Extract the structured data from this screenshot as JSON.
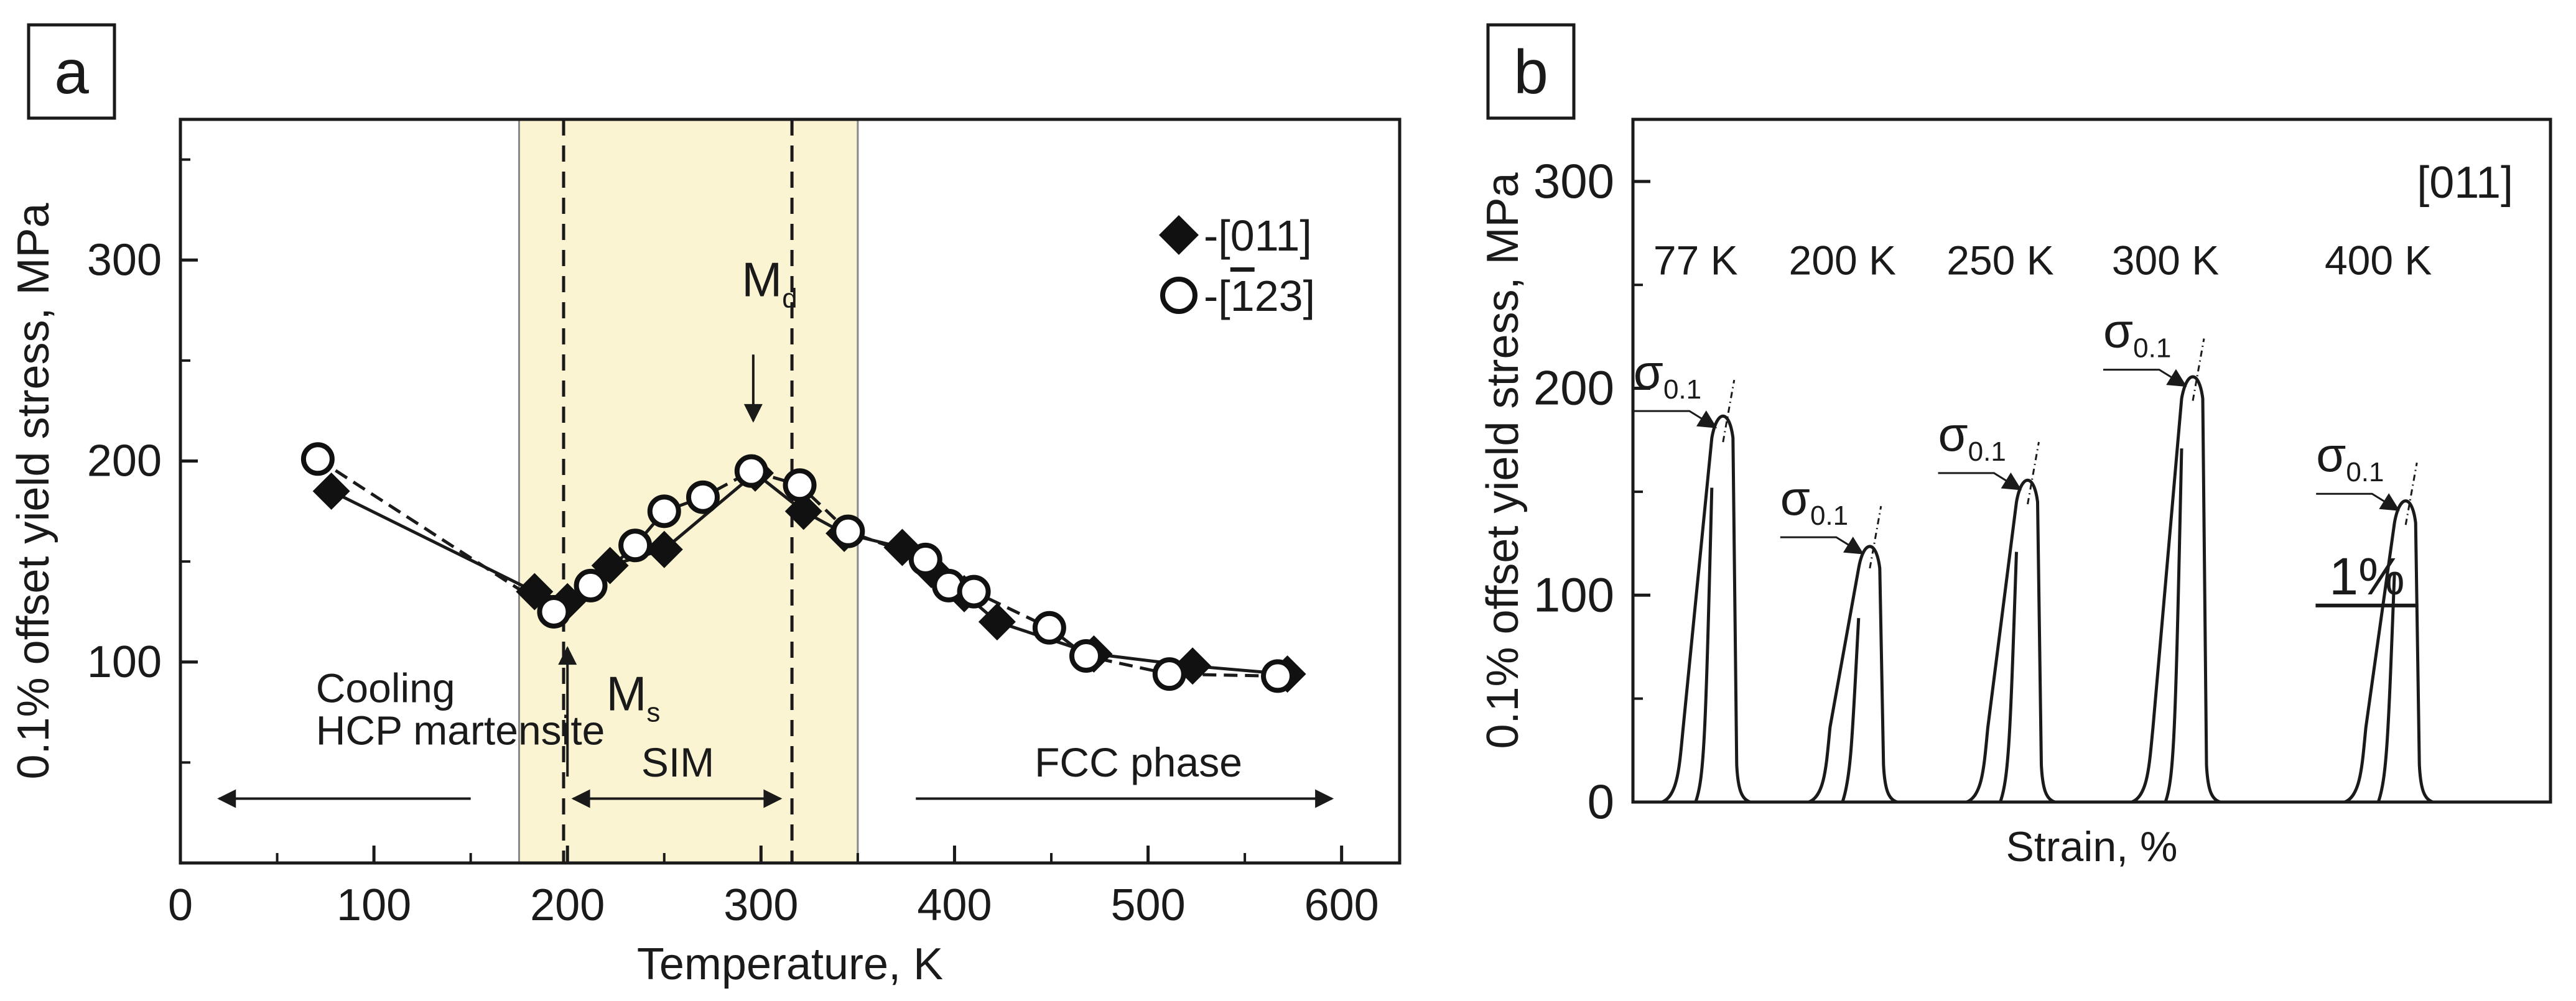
{
  "chart_data": [
    {
      "panel_label": "a",
      "type": "line",
      "xlabel": "Temperature, K",
      "ylabel": "0.1% offset yield stress, MPa",
      "xlim": [
        0,
        630
      ],
      "ylim": [
        0,
        370
      ],
      "xticks": [
        0,
        100,
        200,
        300,
        400,
        500,
        600
      ],
      "xtick_labels": [
        "0",
        "100",
        "200",
        "300",
        "400",
        "500",
        "600"
      ],
      "yticks": [
        100,
        200,
        300
      ],
      "ytick_labels": [
        "100",
        "200",
        "300"
      ],
      "shaded_region": {
        "x_range": [
          175,
          350
        ],
        "color": "#fbf4d2"
      },
      "vlines": [
        {
          "name": "ms-line",
          "x": 198
        },
        {
          "name": "md-line",
          "x": 316
        }
      ],
      "series": [
        {
          "name": "[011]",
          "legend_label": "-[011]",
          "marker": "diamond",
          "line": "solid",
          "x": [
            78,
            183,
            200,
            222,
            250,
            297,
            322,
            343,
            373,
            388,
            405,
            422,
            472,
            523,
            572
          ],
          "y": [
            185,
            135,
            130,
            148,
            156,
            194,
            175,
            164,
            157,
            146,
            134,
            120,
            104,
            98,
            94
          ]
        },
        {
          "name": "[-123]",
          "legend_label": "-[",
          "legend_bar": "1",
          "legend_tail": "23]",
          "marker": "circle",
          "line": "dashed",
          "x": [
            71,
            193,
            212,
            235,
            250,
            270,
            295,
            320,
            345,
            385,
            397,
            410,
            449,
            468,
            511,
            567
          ],
          "y": [
            201,
            125,
            138,
            158,
            175,
            182,
            195,
            188,
            165,
            151,
            138,
            135,
            117,
            103,
            94,
            93
          ]
        }
      ],
      "annotations": [
        {
          "name": "md-label",
          "text": "M",
          "sub": "d",
          "x": 290,
          "y": 282
        },
        {
          "name": "ms-label",
          "text": "M",
          "sub": "s",
          "x": 220,
          "y": 76
        },
        {
          "name": "cooling-label",
          "text": "Cooling",
          "x": 70,
          "y": 80
        },
        {
          "name": "hcp-label",
          "text": "HCP martensite",
          "x": 70,
          "y": 59
        },
        {
          "name": "sim-label",
          "text": "SIM",
          "x": 257,
          "y": 43
        },
        {
          "name": "fcc-label",
          "text": "FCC phase",
          "x": 495,
          "y": 43
        }
      ],
      "arrows": [
        {
          "name": "md-arrow",
          "from": [
            296,
            253
          ],
          "to": [
            296,
            220
          ]
        },
        {
          "name": "ms-arrow",
          "from": [
            200,
            43
          ],
          "to": [
            200,
            107
          ]
        },
        {
          "name": "cooling-arrow",
          "from": [
            150,
            32
          ],
          "to": [
            20,
            32
          ]
        },
        {
          "name": "sim-arrow",
          "both_ends": true,
          "from": [
            203,
            32
          ],
          "to": [
            310,
            32
          ]
        },
        {
          "name": "fcc-arrow",
          "from": [
            380,
            32
          ],
          "to": [
            595,
            32
          ]
        }
      ]
    },
    {
      "panel_label": "b",
      "type": "line",
      "xlabel": "Strain, %",
      "ylabel": "0.1% offset yield stress, MPa",
      "ylim": [
        0,
        330
      ],
      "xlim_units": "% strain (relative, scale bar)",
      "xlim": [
        0,
        25
      ],
      "yticks": [
        0,
        100,
        200,
        300
      ],
      "ytick_labels": [
        "0",
        "100",
        "200",
        "300"
      ],
      "orientation_label": "[011]",
      "scale_bar": {
        "label": "1%",
        "length": 1.0,
        "x_start": 18.6
      },
      "series": [
        {
          "name": "77 K",
          "temperature_label": "77 K",
          "x_offset": 1.2,
          "peak": 188,
          "strain_span": 1.1,
          "sigma_label": "σ",
          "sigma_sub": "0.1",
          "yield": 183
        },
        {
          "name": "200 K",
          "temperature_label": "200 K",
          "x_offset": 5.2,
          "peak": 125,
          "strain_span": 1.1,
          "sigma_label": "σ",
          "sigma_sub": "0.1",
          "yield": 122
        },
        {
          "name": "250 K",
          "temperature_label": "250 K",
          "x_offset": 9.5,
          "peak": 157,
          "strain_span": 1.1,
          "sigma_label": "σ",
          "sigma_sub": "0.1",
          "yield": 153
        },
        {
          "name": "300 K",
          "temperature_label": "300 K",
          "x_offset": 14.0,
          "peak": 207,
          "strain_span": 1.1,
          "sigma_label": "σ",
          "sigma_sub": "0.1",
          "yield": 203
        },
        {
          "name": "400 K",
          "temperature_label": "400 K",
          "x_offset": 19.8,
          "peak": 147,
          "strain_span": 1.1,
          "sigma_label": "σ",
          "sigma_sub": "0.1",
          "yield": 143
        }
      ]
    }
  ]
}
